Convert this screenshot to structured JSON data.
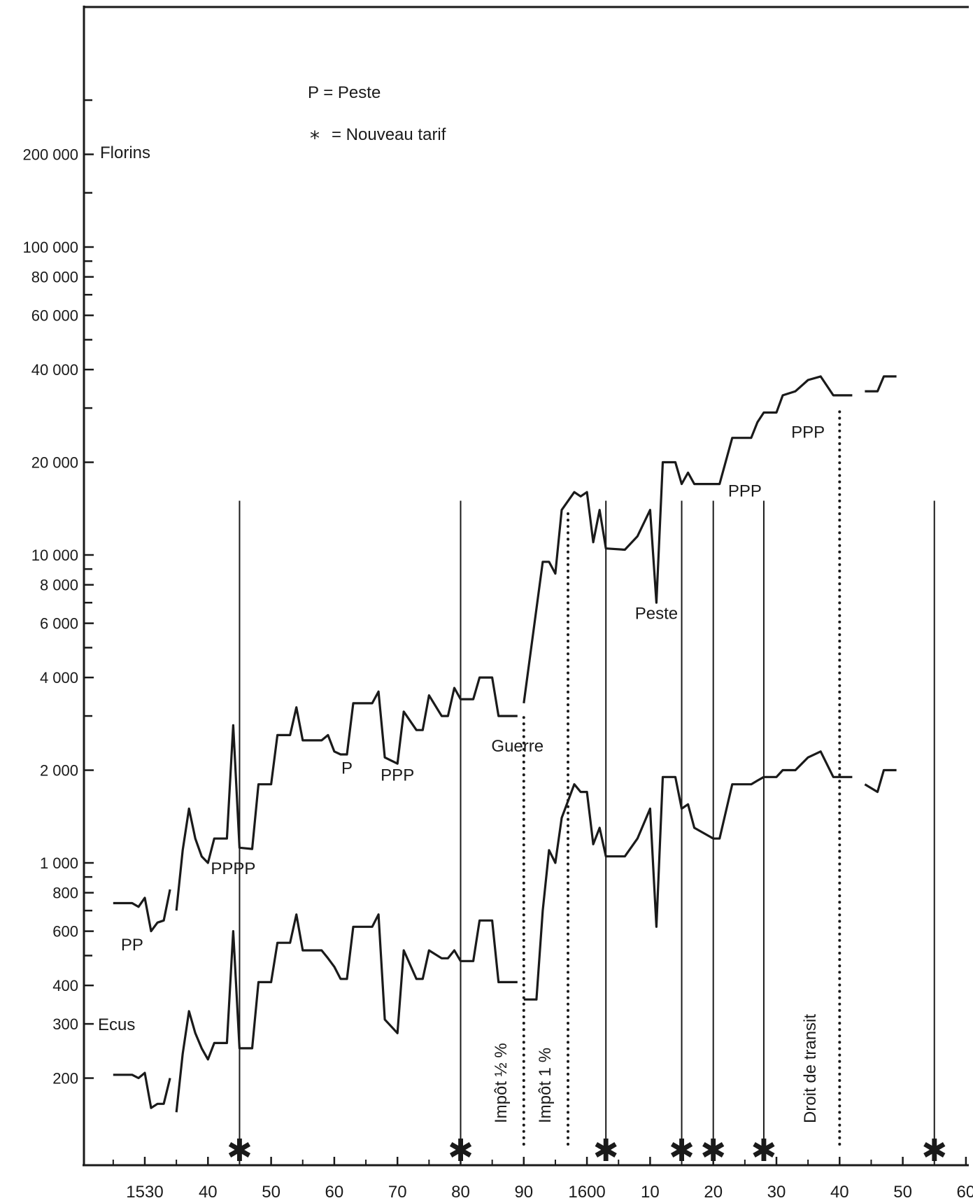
{
  "chart_data": {
    "type": "line",
    "y_scale": "log",
    "x_range": [
      1525,
      1661
    ],
    "y_range": [
      100,
      300000
    ],
    "grid": false,
    "yticks": [
      {
        "value": 200000,
        "label": "200 000"
      },
      {
        "value": 100000,
        "label": "100 000"
      },
      {
        "value": 80000,
        "label": "80 000"
      },
      {
        "value": 60000,
        "label": "60 000"
      },
      {
        "value": 40000,
        "label": "40 000"
      },
      {
        "value": 20000,
        "label": "20 000"
      },
      {
        "value": 10000,
        "label": "10 000"
      },
      {
        "value": 8000,
        "label": "8 000"
      },
      {
        "value": 6000,
        "label": "6 000"
      },
      {
        "value": 4000,
        "label": "4 000"
      },
      {
        "value": 2000,
        "label": "2 000"
      },
      {
        "value": 1000,
        "label": "1 000"
      },
      {
        "value": 800,
        "label": "800"
      },
      {
        "value": 600,
        "label": "600"
      },
      {
        "value": 400,
        "label": "400"
      },
      {
        "value": 300,
        "label": "300"
      },
      {
        "value": 200,
        "label": "200"
      }
    ],
    "minor_yticks": [
      300000,
      150000,
      90000,
      70000,
      50000,
      30000,
      9000,
      7000,
      5000,
      3000,
      900,
      700,
      500
    ],
    "xticks": [
      {
        "value": 1530,
        "label": "1530"
      },
      {
        "value": 1540,
        "label": "40"
      },
      {
        "value": 1550,
        "label": "50"
      },
      {
        "value": 1560,
        "label": "60"
      },
      {
        "value": 1570,
        "label": "70"
      },
      {
        "value": 1580,
        "label": "80"
      },
      {
        "value": 1590,
        "label": "90"
      },
      {
        "value": 1600,
        "label": "1600"
      },
      {
        "value": 1610,
        "label": "10"
      },
      {
        "value": 1620,
        "label": "20"
      },
      {
        "value": 1630,
        "label": "30"
      },
      {
        "value": 1640,
        "label": "40"
      },
      {
        "value": 1650,
        "label": "50"
      },
      {
        "value": 1660,
        "label": "60"
      }
    ],
    "unit_labels": [
      "Florins",
      "Ecus"
    ],
    "legend": [
      "P = Peste",
      "= Nouveau tarif"
    ],
    "series": [
      {
        "name": "Florins",
        "segments": [
          [
            [
              1525,
              740
            ],
            [
              1528,
              740
            ],
            [
              1529,
              720
            ],
            [
              1530,
              770
            ],
            [
              1531,
              600
            ],
            [
              1532,
              640
            ],
            [
              1533,
              650
            ],
            [
              1534,
              820
            ]
          ],
          [
            [
              1535,
              700
            ],
            [
              1536,
              1100
            ],
            [
              1537,
              1500
            ],
            [
              1538,
              1200
            ],
            [
              1539,
              1050
            ],
            [
              1540,
              1000
            ],
            [
              1541,
              1200
            ],
            [
              1543,
              1200
            ],
            [
              1544,
              2800
            ],
            [
              1545,
              1120
            ],
            [
              1547,
              1110
            ],
            [
              1548,
              1800
            ],
            [
              1550,
              1800
            ],
            [
              1551,
              2600
            ],
            [
              1553,
              2600
            ],
            [
              1554,
              3200
            ],
            [
              1555,
              2500
            ],
            [
              1558,
              2500
            ],
            [
              1559,
              2600
            ],
            [
              1560,
              2300
            ],
            [
              1561,
              2250
            ],
            [
              1562,
              2250
            ],
            [
              1563,
              3300
            ],
            [
              1566,
              3300
            ],
            [
              1567,
              3600
            ],
            [
              1568,
              2200
            ],
            [
              1570,
              2100
            ],
            [
              1571,
              3100
            ],
            [
              1573,
              2700
            ],
            [
              1574,
              2700
            ],
            [
              1575,
              3500
            ],
            [
              1577,
              3000
            ],
            [
              1578,
              3000
            ],
            [
              1579,
              3700
            ],
            [
              1580,
              3400
            ],
            [
              1582,
              3400
            ],
            [
              1583,
              4000
            ],
            [
              1585,
              4000
            ],
            [
              1586,
              3000
            ],
            [
              1588,
              3000
            ],
            [
              1589,
              3000
            ]
          ],
          [
            [
              1590,
              3300
            ],
            [
              1593,
              9500
            ],
            [
              1594,
              9500
            ],
            [
              1595,
              8700
            ],
            [
              1596,
              14000
            ],
            [
              1598,
              16000
            ],
            [
              1599,
              15500
            ],
            [
              1600,
              16000
            ],
            [
              1601,
              11000
            ],
            [
              1602,
              14000
            ],
            [
              1603,
              10500
            ],
            [
              1606,
              10400
            ],
            [
              1608,
              11500
            ],
            [
              1610,
              14000
            ],
            [
              1611,
              7000
            ],
            [
              1612,
              20000
            ],
            [
              1614,
              20000
            ],
            [
              1615,
              17000
            ],
            [
              1616,
              18500
            ],
            [
              1617,
              17000
            ],
            [
              1620,
              17000
            ],
            [
              1621,
              17000
            ],
            [
              1623,
              24000
            ],
            [
              1626,
              24000
            ],
            [
              1627,
              27000
            ],
            [
              1628,
              29000
            ],
            [
              1630,
              29000
            ],
            [
              1631,
              33000
            ],
            [
              1633,
              34000
            ],
            [
              1635,
              37000
            ],
            [
              1637,
              38000
            ],
            [
              1639,
              33000
            ],
            [
              1642,
              33000
            ]
          ],
          [
            [
              1644,
              34000
            ],
            [
              1646,
              34000
            ],
            [
              1647,
              38000
            ],
            [
              1649,
              38000
            ]
          ]
        ]
      },
      {
        "name": "Ecus",
        "segments": [
          [
            [
              1525,
              205
            ],
            [
              1528,
              205
            ],
            [
              1529,
              200
            ],
            [
              1530,
              208
            ],
            [
              1531,
              160
            ],
            [
              1532,
              165
            ],
            [
              1533,
              165
            ],
            [
              1534,
              200
            ]
          ],
          [
            [
              1535,
              155
            ],
            [
              1536,
              240
            ],
            [
              1537,
              330
            ],
            [
              1538,
              280
            ],
            [
              1539,
              250
            ],
            [
              1540,
              230
            ],
            [
              1541,
              260
            ],
            [
              1543,
              260
            ],
            [
              1544,
              600
            ],
            [
              1545,
              250
            ],
            [
              1547,
              250
            ],
            [
              1548,
              410
            ],
            [
              1550,
              410
            ],
            [
              1551,
              550
            ],
            [
              1553,
              550
            ],
            [
              1554,
              680
            ],
            [
              1555,
              520
            ],
            [
              1558,
              520
            ],
            [
              1559,
              490
            ],
            [
              1560,
              460
            ],
            [
              1561,
              420
            ],
            [
              1562,
              420
            ],
            [
              1563,
              620
            ],
            [
              1566,
              620
            ],
            [
              1567,
              680
            ],
            [
              1568,
              310
            ],
            [
              1570,
              280
            ],
            [
              1571,
              520
            ],
            [
              1573,
              420
            ],
            [
              1574,
              420
            ],
            [
              1575,
              520
            ],
            [
              1577,
              490
            ],
            [
              1578,
              490
            ],
            [
              1579,
              520
            ],
            [
              1580,
              480
            ],
            [
              1582,
              480
            ],
            [
              1583,
              650
            ],
            [
              1585,
              650
            ],
            [
              1586,
              410
            ],
            [
              1588,
              410
            ],
            [
              1589,
              410
            ]
          ],
          [
            [
              1590,
              360
            ],
            [
              1592,
              360
            ],
            [
              1593,
              700
            ],
            [
              1594,
              1100
            ],
            [
              1595,
              1000
            ],
            [
              1596,
              1400
            ],
            [
              1598,
              1800
            ],
            [
              1599,
              1700
            ],
            [
              1600,
              1700
            ],
            [
              1601,
              1150
            ],
            [
              1602,
              1300
            ],
            [
              1603,
              1050
            ],
            [
              1606,
              1050
            ],
            [
              1608,
              1200
            ],
            [
              1610,
              1500
            ],
            [
              1611,
              620
            ],
            [
              1612,
              1900
            ],
            [
              1614,
              1900
            ],
            [
              1615,
              1500
            ],
            [
              1616,
              1550
            ],
            [
              1617,
              1300
            ],
            [
              1620,
              1200
            ],
            [
              1621,
              1200
            ],
            [
              1623,
              1800
            ],
            [
              1626,
              1800
            ],
            [
              1627,
              1850
            ],
            [
              1628,
              1900
            ],
            [
              1630,
              1900
            ],
            [
              1631,
              2000
            ],
            [
              1633,
              2000
            ],
            [
              1635,
              2200
            ],
            [
              1637,
              2300
            ],
            [
              1639,
              1900
            ],
            [
              1642,
              1900
            ]
          ],
          [
            [
              1644,
              1800
            ],
            [
              1646,
              1700
            ],
            [
              1647,
              2000
            ],
            [
              1649,
              2000
            ]
          ]
        ]
      }
    ],
    "tariff_years": [
      1545,
      1580,
      1603,
      1615,
      1620,
      1628,
      1655
    ],
    "dotted_years": [
      1590,
      1597,
      1640
    ],
    "annotations": [
      {
        "text": "PP",
        "x": 1528,
        "y": 520
      },
      {
        "text": "PPPP",
        "x": 1544,
        "y": 920
      },
      {
        "text": "P",
        "x": 1562,
        "y": 1950
      },
      {
        "text": "PPP",
        "x": 1570,
        "y": 1850
      },
      {
        "text": "Guerre",
        "x": 1589,
        "y": 2300
      },
      {
        "text": "Peste",
        "x": 1611,
        "y": 6200
      },
      {
        "text": "PPP",
        "x": 1625,
        "y": 15500
      },
      {
        "text": "PPP",
        "x": 1635,
        "y": 24000
      }
    ],
    "vertical_text": [
      {
        "text": "Impôt ½ %",
        "x": 1589
      },
      {
        "text": "Impôt 1 %",
        "x": 1596
      },
      {
        "text": "Droit de transit",
        "x": 1638
      }
    ]
  }
}
